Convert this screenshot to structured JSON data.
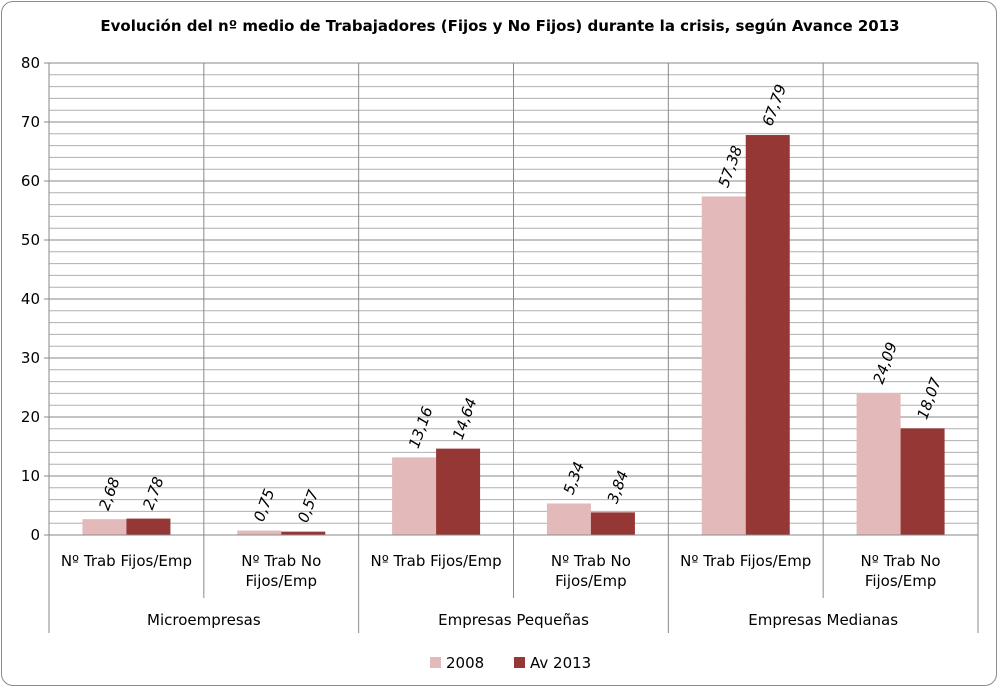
{
  "chart_data": {
    "type": "bar",
    "title": "Evolución del nº medio de Trabajadores (Fijos y No Fijos) durante la crisis, según Avance 2013",
    "groups": [
      "Microempresas",
      "Empresas Pequeñas",
      "Empresas Medianas"
    ],
    "categories": [
      "Nº Trab Fijos/Emp",
      "Nº Trab No Fijos/Emp",
      "Nº Trab Fijos/Emp",
      "Nº Trab No Fijos/Emp",
      "Nº Trab Fijos/Emp",
      "Nº Trab No Fijos/Emp"
    ],
    "category_lines": [
      [
        "Nº Trab Fijos/Emp"
      ],
      [
        "Nº Trab No",
        "Fijos/Emp"
      ],
      [
        "Nº Trab Fijos/Emp"
      ],
      [
        "Nº Trab No",
        "Fijos/Emp"
      ],
      [
        "Nº Trab Fijos/Emp"
      ],
      [
        "Nº Trab No",
        "Fijos/Emp"
      ]
    ],
    "series": [
      {
        "name": "2008",
        "color": "#e3b9b9",
        "values": [
          2.68,
          0.75,
          13.16,
          5.34,
          57.38,
          24.09
        ],
        "labels": [
          "2,68",
          "0,75",
          "13,16",
          "5,34",
          "57,38",
          "24,09"
        ]
      },
      {
        "name": "Av 2013",
        "color": "#953735",
        "values": [
          2.78,
          0.57,
          14.64,
          3.84,
          67.79,
          18.07
        ],
        "labels": [
          "2,78",
          "0,57",
          "14,64",
          "3,84",
          "67,79",
          "18,07"
        ]
      }
    ],
    "ylim": [
      0,
      80
    ],
    "yticks": [
      0,
      10,
      20,
      30,
      40,
      50,
      60,
      70,
      80
    ],
    "minor_gridline_step": 2,
    "grid": true,
    "legend_position": "bottom"
  }
}
